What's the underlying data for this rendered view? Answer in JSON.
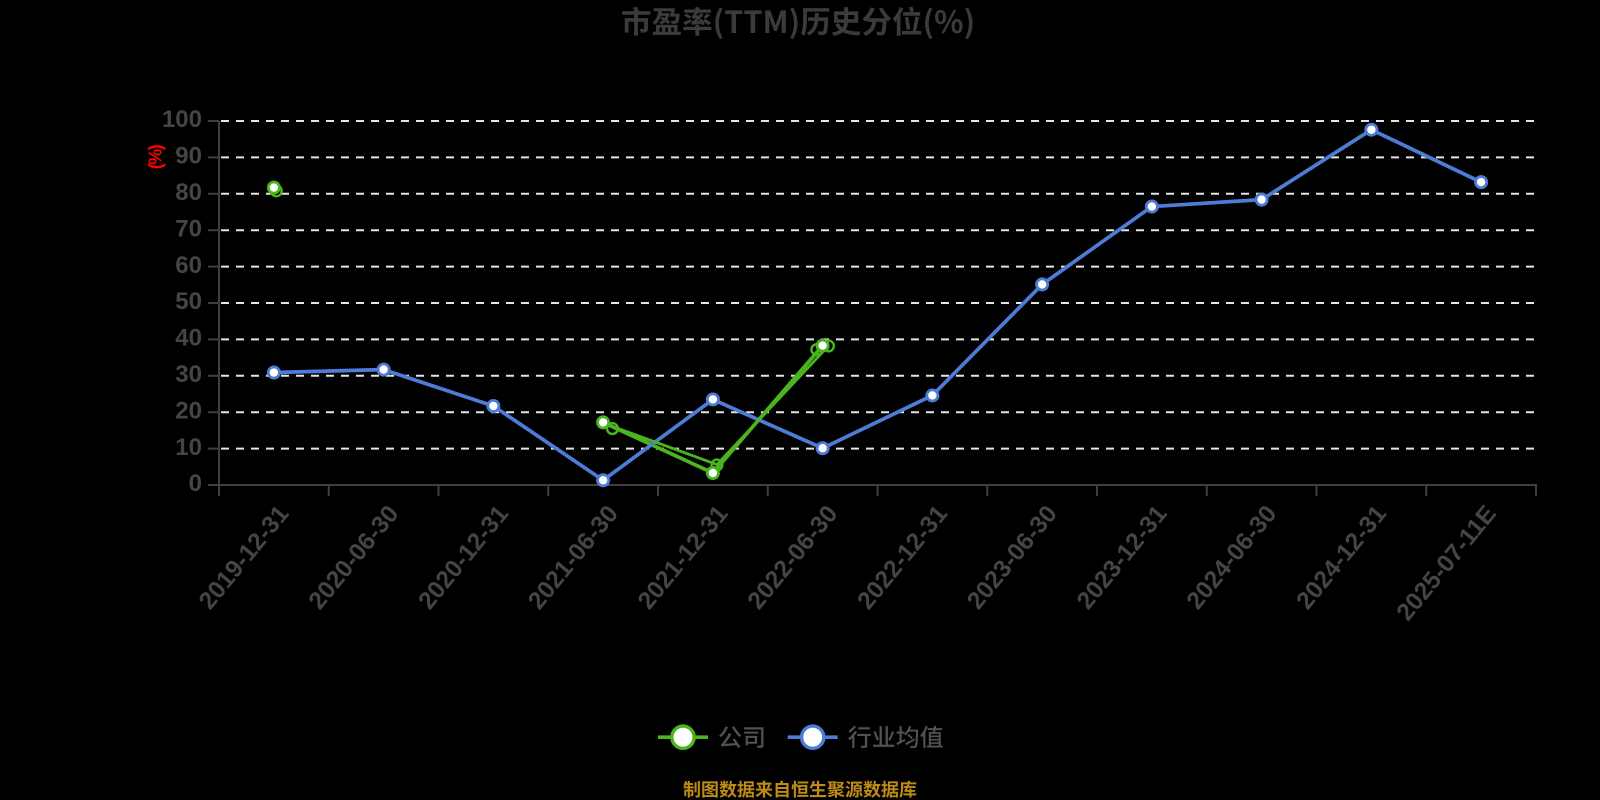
{
  "title": {
    "text": "市盈率(TTM)历史分位(%)",
    "color": "#3b3b3b"
  },
  "y_axis": {
    "unit_label": "(%)",
    "unit_label_color": "#ff0000",
    "ticks": [
      0,
      10,
      20,
      30,
      40,
      50,
      60,
      70,
      80,
      90,
      100
    ],
    "range": [
      0,
      100
    ],
    "tick_label_color": "#454545"
  },
  "x_axis": {
    "tick_label_color": "#454545"
  },
  "legend": {
    "items": [
      {
        "label": "公司",
        "color": "#4bb41e"
      },
      {
        "label": "行业均值",
        "color": "#4d7cd6"
      }
    ],
    "label_color": "#515151"
  },
  "footer": {
    "text": "制图数据来自恒生聚源数据库",
    "color": "#bd8b16"
  },
  "colors": {
    "background": "#000000",
    "gridline": "#e4e4e4",
    "axis": "#3f3f3f",
    "marker_fill": "#ffffff"
  },
  "chart_data": {
    "type": "line",
    "categories": [
      "2019-12-31",
      "2020-06-30",
      "2020-12-31",
      "2021-06-30",
      "2021-12-31",
      "2022-06-30",
      "2022-12-31",
      "2023-06-30",
      "2023-12-31",
      "2024-06-30",
      "2024-12-31",
      "2025-07-11E"
    ],
    "series": [
      {
        "name": "公司",
        "color": "#4bb41e",
        "values": [
          81.7,
          null,
          null,
          17.2,
          3.3,
          38.3,
          null,
          null,
          null,
          null,
          null,
          null
        ]
      },
      {
        "name": "行业均值",
        "color": "#4d7cd6",
        "values": [
          30.9,
          31.7,
          21.7,
          1.3,
          23.5,
          10.1,
          24.6,
          55.1,
          76.5,
          78.4,
          97.6,
          83.2
        ]
      }
    ],
    "ylim": [
      0,
      100
    ],
    "ylabel": "(%)",
    "grid": "horizontal-dashed",
    "legend_position": "bottom",
    "artifacts": {
      "company_shadow_points": [
        [
          0.522,
          80.8
        ],
        [
          3.585,
          15.5
        ],
        [
          4.537,
          5.5
        ],
        [
          5.447,
          37.2
        ],
        [
          5.553,
          38.2
        ]
      ],
      "company_shadow_line": [
        [
          3.585,
          16.1
        ],
        [
          4.537,
          5.6
        ],
        [
          5.553,
          38.2
        ]
      ]
    }
  }
}
